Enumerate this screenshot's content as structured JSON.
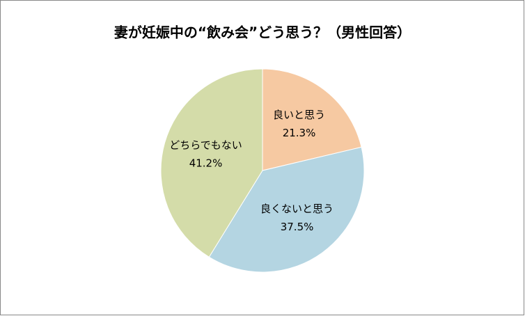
{
  "chart_data": {
    "type": "pie",
    "title": "妻が妊娠中の“飲み会”どう思う？（男性回答）",
    "categories": [
      "良いと思う",
      "良くないと思う",
      "どちらでもない"
    ],
    "values": [
      21.3,
      37.5,
      41.2
    ],
    "value_labels": [
      "21.3%",
      "37.5%",
      "41.2%"
    ],
    "colors": [
      "#f6c9a2",
      "#b4d5e2",
      "#d4dca9"
    ]
  }
}
